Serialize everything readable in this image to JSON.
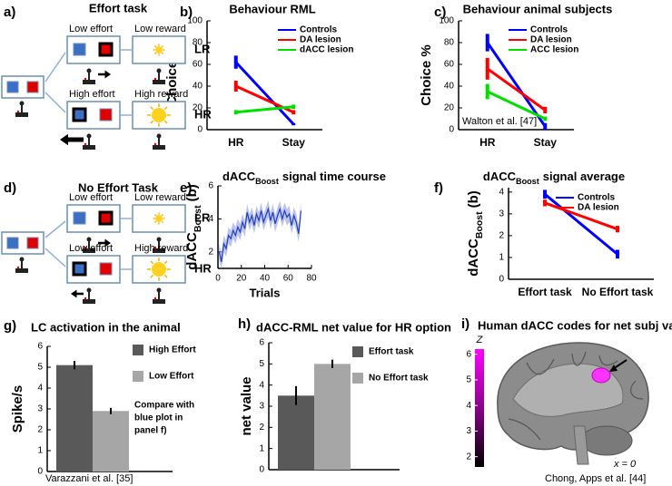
{
  "chart_data": [
    {
      "panel": "b)",
      "type": "line",
      "title": "Behaviour RML",
      "ylabel": "Choice %",
      "categories": [
        "HR",
        "Stay"
      ],
      "ylim": [
        0,
        100
      ],
      "yticks": [
        0,
        20,
        40,
        60,
        80,
        100
      ],
      "grid": false,
      "legend": "upper right",
      "series": [
        {
          "name": "Controls",
          "color": "#0000ff",
          "values": [
            62,
            5
          ],
          "errors": [
            6,
            1
          ]
        },
        {
          "name": "DA lesion",
          "color": "#ff0000",
          "values": [
            40,
            16
          ],
          "errors": [
            5,
            2
          ]
        },
        {
          "name": "dACC lesion",
          "color": "#00e000",
          "values": [
            16,
            21
          ],
          "errors": [
            2,
            2
          ]
        }
      ]
    },
    {
      "panel": "c)",
      "type": "line",
      "title": "Behaviour animal subjects",
      "ylabel": "Choice %",
      "categories": [
        "HR",
        "Stay"
      ],
      "ylim": [
        0,
        100
      ],
      "yticks": [
        0,
        20,
        40,
        60,
        80,
        100
      ],
      "grid": false,
      "legend": "upper right",
      "series": [
        {
          "name": "Controls",
          "color": "#0000ff",
          "values": [
            80,
            3
          ],
          "errors": [
            8,
            3
          ]
        },
        {
          "name": "DA lesion",
          "color": "#ff0000",
          "values": [
            56,
            18
          ],
          "errors": [
            10,
            3
          ]
        },
        {
          "name": "ACC lesion",
          "color": "#00e000",
          "values": [
            35,
            10
          ],
          "errors": [
            7,
            2
          ]
        }
      ],
      "source": "Walton et al. [47]"
    },
    {
      "panel": "e)",
      "type": "line",
      "title": {
        "main": "dACC",
        "sub": "Boost",
        "rest": "signal time course"
      },
      "xlabel": "Trials",
      "ylabel": {
        "main": "dACC",
        "sub": "Boost",
        "unit": "(b)"
      },
      "x": [
        1,
        3,
        5,
        7,
        9,
        11,
        13,
        15,
        17,
        19,
        21,
        23,
        25,
        27,
        29,
        31,
        33,
        35,
        37,
        39,
        41,
        43,
        45,
        47,
        49,
        51,
        53,
        55,
        57,
        59,
        61,
        63,
        65,
        67,
        69,
        71
      ],
      "series": [
        {
          "color": "#1f3fbf",
          "band": 0.5,
          "values": [
            2.0,
            1.4,
            2.5,
            2.2,
            3.0,
            2.8,
            3.3,
            3.0,
            3.5,
            3.2,
            3.8,
            3.4,
            4.4,
            3.8,
            4.2,
            3.6,
            4.3,
            3.9,
            4.5,
            3.8,
            4.2,
            4.6,
            3.9,
            4.4,
            3.7,
            4.2,
            4.6,
            4.0,
            4.5,
            4.1,
            4.3,
            3.6,
            4.2,
            3.8,
            3.1,
            4.5
          ]
        }
      ],
      "xlim": [
        0,
        80
      ],
      "xticks": [
        0,
        20,
        40,
        60,
        80
      ],
      "ylim": [
        1,
        6
      ],
      "yticks": [
        2,
        4,
        6
      ],
      "grid": false
    },
    {
      "panel": "f)",
      "type": "line",
      "title": {
        "main": "dACC",
        "sub": "Boost",
        "rest": "signal average"
      },
      "ylabel": {
        "main": "dACC",
        "sub": "Boost",
        "unit": "(b)"
      },
      "categories": [
        "Effort task",
        "No Effort task"
      ],
      "ylim": [
        0,
        4.2
      ],
      "yticks": [
        0,
        1,
        2,
        3,
        4
      ],
      "grid": false,
      "legend": "upper right",
      "series": [
        {
          "name": "Controls",
          "color": "#0000ff",
          "values": [
            3.9,
            1.15
          ],
          "errors": [
            0.2,
            0.2
          ]
        },
        {
          "name": "DA lesion",
          "color": "#ff0000",
          "values": [
            3.5,
            2.3
          ],
          "errors": [
            0.15,
            0.15
          ]
        }
      ]
    },
    {
      "panel": "g)",
      "type": "bar",
      "title": "LC activation in the animal",
      "ylabel": "Spike/s",
      "ylim": [
        0,
        6
      ],
      "yticks": [
        0,
        1,
        2,
        3,
        4,
        5,
        6
      ],
      "grid": false,
      "series": [
        {
          "name": "High Effort",
          "color": "#595959",
          "values": [
            5.1
          ],
          "errors": [
            0.2
          ]
        },
        {
          "name": "Low Effort",
          "color": "#a6a6a6",
          "values": [
            2.9
          ],
          "errors": [
            0.15
          ]
        }
      ],
      "note": [
        "Compare with",
        "blue plot in",
        "panel f)"
      ],
      "source": "Varazzani et al. [35]"
    },
    {
      "panel": "h)",
      "type": "bar",
      "title": "dACC-RML net value for HR option",
      "ylabel": "net value",
      "ylim": [
        0,
        6
      ],
      "yticks": [
        0,
        1,
        2,
        3,
        4,
        5,
        6
      ],
      "grid": false,
      "series": [
        {
          "name": "Effort task",
          "color": "#595959",
          "values": [
            3.5
          ],
          "errors": [
            0.45
          ]
        },
        {
          "name": "No Effort task",
          "color": "#a6a6a6",
          "values": [
            5.0
          ],
          "errors": [
            0.2
          ]
        }
      ]
    }
  ],
  "diagrams": {
    "a": {
      "panel": "a)",
      "title": "Effort task",
      "top": {
        "action": "Low effort",
        "outcome": "Low reward",
        "code": "LR"
      },
      "bottom": {
        "action": "High effort",
        "outcome": "High reward",
        "code": "HR"
      }
    },
    "d": {
      "panel": "d)",
      "title": "No Effort Task",
      "top": {
        "action": "Low effort",
        "outcome": "Low reward",
        "code": "LR"
      },
      "bottom": {
        "action": "Low effort",
        "outcome": "High reward",
        "code": "HR"
      }
    },
    "i": {
      "panel": "i)",
      "title": "Human dACC codes for net subj value",
      "colorbar": {
        "label": "Z",
        "lim": [
          1.6,
          6.2
        ],
        "ticks": [
          2,
          3,
          4,
          5,
          6
        ]
      },
      "slice": "x = 0",
      "source": "Chong, Apps et al. [44]"
    }
  }
}
